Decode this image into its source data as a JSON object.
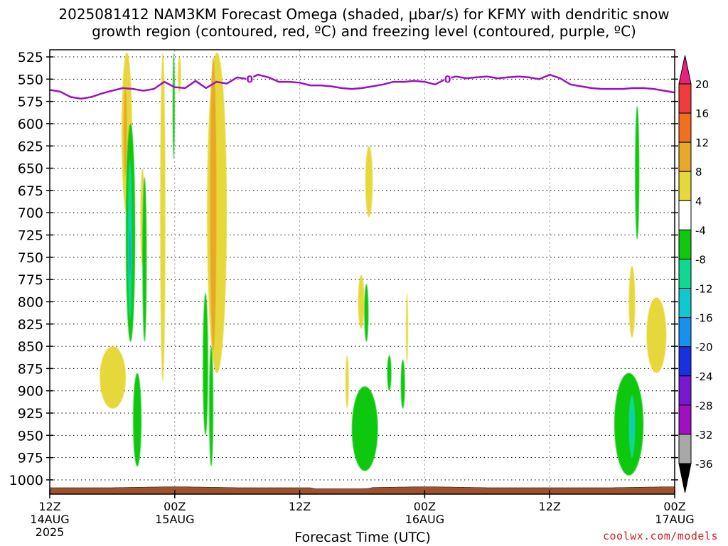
{
  "title_line1": "2025081412 NAM3KM Forecast Omega (shaded, μbar/s) for KFMY with dendritic snow",
  "title_line2": "growth region (contoured, red, ºC) and freezing level (contoured, purple, ºC)",
  "credit": "coolwx.com/models",
  "chart_data": {
    "type": "heatmap",
    "xlabel": "Forecast Time (UTC)",
    "ylabel": "",
    "x_ticks": [
      {
        "hours": 0,
        "lines": [
          "12Z",
          "14AUG",
          "2025"
        ]
      },
      {
        "hours": 12,
        "lines": [
          "00Z",
          "15AUG"
        ]
      },
      {
        "hours": 24,
        "lines": [
          "12Z"
        ]
      },
      {
        "hours": 36,
        "lines": [
          "00Z",
          "16AUG"
        ]
      },
      {
        "hours": 48,
        "lines": [
          "12Z"
        ]
      },
      {
        "hours": 60,
        "lines": [
          "00Z",
          "17AUG"
        ]
      }
    ],
    "xlim_hours": [
      0,
      60
    ],
    "y_ticks": [
      525,
      550,
      575,
      600,
      625,
      650,
      675,
      700,
      725,
      750,
      775,
      800,
      825,
      850,
      875,
      900,
      925,
      950,
      975,
      1000
    ],
    "ylim_hPa": [
      517,
      1016
    ],
    "colorbar": {
      "labels": [
        "20",
        "16",
        "12",
        "8",
        "4",
        "-4",
        "-8",
        "-12",
        "-16",
        "-20",
        "-24",
        "-28",
        "-32",
        "-36"
      ],
      "bins": [
        {
          "color": "#e8207e"
        },
        {
          "color": "#f03c3c",
          "lo": 16,
          "hi": 20
        },
        {
          "color": "#f07020",
          "lo": 12,
          "hi": 16
        },
        {
          "color": "#e8a828",
          "lo": 8,
          "hi": 12
        },
        {
          "color": "#e6d83a",
          "lo": 4,
          "hi": 8
        },
        {
          "color": "#ffffff",
          "lo": -4,
          "hi": 4
        },
        {
          "color": "#10c810",
          "lo": -8,
          "hi": -4
        },
        {
          "color": "#10d890",
          "lo": -12,
          "hi": -8
        },
        {
          "color": "#10c8d0",
          "lo": -16,
          "hi": -12
        },
        {
          "color": "#1890f0",
          "lo": -20,
          "hi": -16
        },
        {
          "color": "#1830e0",
          "lo": -24,
          "hi": -20
        },
        {
          "color": "#7818d0",
          "lo": -28,
          "hi": -24
        },
        {
          "color": "#a010c0",
          "lo": -32,
          "hi": -28
        },
        {
          "color": "#a8a8a8",
          "lo": -36,
          "hi": -32
        },
        {
          "color": "#000000"
        }
      ]
    },
    "freezing_level": {
      "label": "0",
      "color": "#9b10c0",
      "points_hours_hPa": [
        [
          0,
          562
        ],
        [
          1,
          564
        ],
        [
          2,
          570
        ],
        [
          3,
          572
        ],
        [
          4,
          570
        ],
        [
          5,
          566
        ],
        [
          6,
          563
        ],
        [
          7,
          560
        ],
        [
          8,
          561
        ],
        [
          9,
          563
        ],
        [
          10,
          561
        ],
        [
          11,
          553
        ],
        [
          12,
          559
        ],
        [
          13,
          560
        ],
        [
          14,
          552
        ],
        [
          15,
          560
        ],
        [
          16,
          553
        ],
        [
          17,
          555
        ],
        [
          18,
          548
        ],
        [
          19,
          550
        ],
        [
          20,
          545
        ],
        [
          21,
          548
        ],
        [
          22,
          553
        ],
        [
          23,
          553
        ],
        [
          24,
          554
        ],
        [
          25,
          557
        ],
        [
          26,
          557
        ],
        [
          27,
          558
        ],
        [
          28,
          560
        ],
        [
          29,
          561
        ],
        [
          30,
          560
        ],
        [
          31,
          558
        ],
        [
          32,
          556
        ],
        [
          33,
          553
        ],
        [
          34,
          553
        ],
        [
          35,
          552
        ],
        [
          36,
          553
        ],
        [
          37,
          556
        ],
        [
          38,
          550
        ],
        [
          39,
          547
        ],
        [
          40,
          549
        ],
        [
          41,
          548
        ],
        [
          42,
          547
        ],
        [
          43,
          549
        ],
        [
          44,
          548
        ],
        [
          45,
          547
        ],
        [
          46,
          548
        ],
        [
          47,
          550
        ],
        [
          48,
          545
        ],
        [
          49,
          549
        ],
        [
          50,
          556
        ],
        [
          51,
          558
        ],
        [
          52,
          560
        ],
        [
          53,
          561
        ],
        [
          54,
          561
        ],
        [
          55,
          561
        ],
        [
          56,
          560
        ],
        [
          57,
          560
        ],
        [
          58,
          561
        ],
        [
          59,
          563
        ],
        [
          60,
          565
        ]
      ]
    },
    "omega_regions": [
      {
        "value": 6,
        "x": [
          6.9,
          7.9
        ],
        "p": [
          520,
          700
        ]
      },
      {
        "value": 8,
        "x": [
          7.1,
          7.4
        ],
        "p": [
          560,
          660
        ]
      },
      {
        "value": 6,
        "x": [
          4.8,
          7.3
        ],
        "p": [
          850,
          920
        ]
      },
      {
        "value": -6,
        "x": [
          7.3,
          8.2
        ],
        "p": [
          600,
          845
        ]
      },
      {
        "value": -10,
        "x": [
          7.5,
          7.9
        ],
        "p": [
          640,
          820
        ]
      },
      {
        "value": -14,
        "x": [
          7.6,
          7.8
        ],
        "p": [
          690,
          780
        ]
      },
      {
        "value": -18,
        "x": [
          7.65,
          7.75
        ],
        "p": [
          720,
          770
        ]
      },
      {
        "value": -6,
        "x": [
          8.0,
          8.8
        ],
        "p": [
          880,
          985
        ]
      },
      {
        "value": 6,
        "x": [
          8.7,
          9.1
        ],
        "p": [
          650,
          760
        ]
      },
      {
        "value": -6,
        "x": [
          8.9,
          9.3
        ],
        "p": [
          660,
          845
        ]
      },
      {
        "value": 6,
        "x": [
          10.6,
          11.1
        ],
        "p": [
          520,
          890
        ]
      },
      {
        "value": -6,
        "x": [
          11.8,
          12.0
        ],
        "p": [
          520,
          640
        ]
      },
      {
        "value": 6,
        "x": [
          12.3,
          12.6
        ],
        "p": [
          525,
          565
        ]
      },
      {
        "value": 6,
        "x": [
          15.1,
          17.0
        ],
        "p": [
          520,
          880
        ]
      },
      {
        "value": 8,
        "x": [
          15.4,
          16.0
        ],
        "p": [
          525,
          855
        ]
      },
      {
        "value": -6,
        "x": [
          14.7,
          15.2
        ],
        "p": [
          790,
          950
        ]
      },
      {
        "value": -6,
        "x": [
          15.3,
          15.7
        ],
        "p": [
          850,
          985
        ]
      },
      {
        "value": 6,
        "x": [
          30.3,
          31.0
        ],
        "p": [
          625,
          705
        ]
      },
      {
        "value": 6,
        "x": [
          29.6,
          30.2
        ],
        "p": [
          770,
          830
        ]
      },
      {
        "value": -6,
        "x": [
          30.2,
          30.6
        ],
        "p": [
          780,
          845
        ]
      },
      {
        "value": 6,
        "x": [
          28.4,
          28.7
        ],
        "p": [
          860,
          920
        ]
      },
      {
        "value": -6,
        "x": [
          32.4,
          32.8
        ],
        "p": [
          860,
          900
        ]
      },
      {
        "value": -6,
        "x": [
          33.7,
          34.1
        ],
        "p": [
          865,
          920
        ]
      },
      {
        "value": -6,
        "x": [
          29.0,
          31.5
        ],
        "p": [
          895,
          990
        ]
      },
      {
        "value": 6,
        "x": [
          34.2,
          34.4
        ],
        "p": [
          790,
          870
        ]
      },
      {
        "value": -6,
        "x": [
          56.2,
          56.6
        ],
        "p": [
          580,
          730
        ]
      },
      {
        "value": 6,
        "x": [
          55.6,
          56.2
        ],
        "p": [
          760,
          840
        ]
      },
      {
        "value": 6,
        "x": [
          57.3,
          59.2
        ],
        "p": [
          795,
          880
        ]
      },
      {
        "value": -6,
        "x": [
          54.2,
          57.0
        ],
        "p": [
          880,
          995
        ]
      },
      {
        "value": -10,
        "x": [
          55.6,
          56.2
        ],
        "p": [
          905,
          975
        ]
      },
      {
        "value": -14,
        "x": [
          55.8,
          56.1
        ],
        "p": [
          920,
          955
        ]
      }
    ],
    "terrain_color": "#a0522d"
  }
}
